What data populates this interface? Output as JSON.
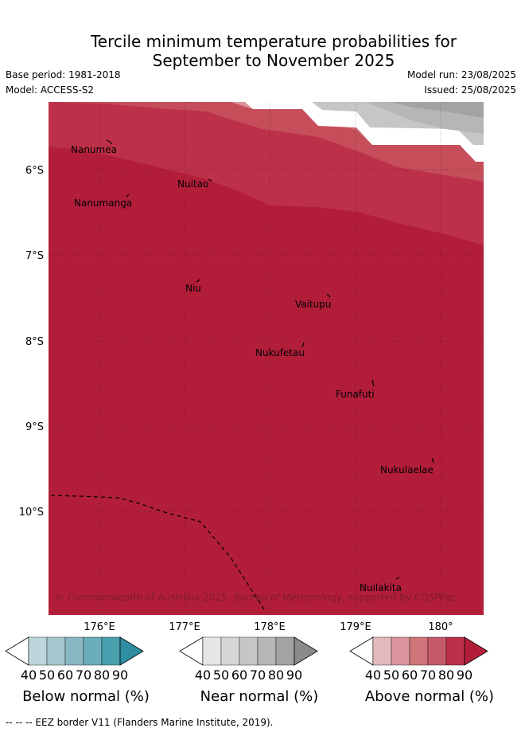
{
  "header": {
    "title_line1": "Tercile minimum temperature probabilities for",
    "title_line2": "September to November 2025",
    "base_period": "Base period: 1981-2018",
    "model": "Model: ACCESS-S2",
    "model_run": "Model run: 23/08/2025",
    "issued": "Issued: 25/08/2025"
  },
  "map": {
    "lat_labels": [
      "6°S",
      "7°S",
      "8°S",
      "9°S",
      "10°S"
    ],
    "lon_labels": [
      "176°E",
      "177°E",
      "178°E",
      "179°E",
      "180°"
    ],
    "places": [
      {
        "name": "Nanumea"
      },
      {
        "name": "Nuitao"
      },
      {
        "name": "Nanumanga"
      },
      {
        "name": "Niu"
      },
      {
        "name": "Vaitupu"
      },
      {
        "name": "Nukufetau"
      },
      {
        "name": "Funafuti"
      },
      {
        "name": "Nukulaelae"
      },
      {
        "name": "Nuilakita"
      }
    ],
    "copyright": "© Commonwealth of Australia 2025, Bureau of Meteorology, supported by COSPPac",
    "colors": {
      "above_90": "#b21e3a",
      "above_80": "#bd3049",
      "above_70": "#c54e5a",
      "above_60": "#cf6d75",
      "above_50": "#d9959b",
      "near_80": "#b6b6b6",
      "near_70": "#c6c6c6",
      "near_90": "#a3a3a3"
    }
  },
  "colorbars": [
    {
      "label": "Below normal (%)",
      "ticks": [
        "40",
        "50",
        "60",
        "70",
        "80",
        "90"
      ],
      "colors": [
        "#ffffff",
        "#bcd6dc",
        "#a5c8ce",
        "#89b8c3",
        "#6badba",
        "#489fae",
        "#2f8ea1"
      ]
    },
    {
      "label": "Near normal (%)",
      "ticks": [
        "40",
        "50",
        "60",
        "70",
        "80",
        "90"
      ],
      "colors": [
        "#ffffff",
        "#e6e6e6",
        "#d6d6d6",
        "#c6c6c6",
        "#b6b6b6",
        "#a3a3a3",
        "#8a8a8a"
      ]
    },
    {
      "label": "Above normal (%)",
      "ticks": [
        "40",
        "50",
        "60",
        "70",
        "80",
        "90"
      ],
      "colors": [
        "#ffffff",
        "#e3b9bf",
        "#d9959b",
        "#cf7479",
        "#c5596a",
        "#bd3049",
        "#b21e3a"
      ]
    }
  ],
  "footnote": "-- -- -- EEZ border V11 (Flanders Marine Institute, 2019)."
}
